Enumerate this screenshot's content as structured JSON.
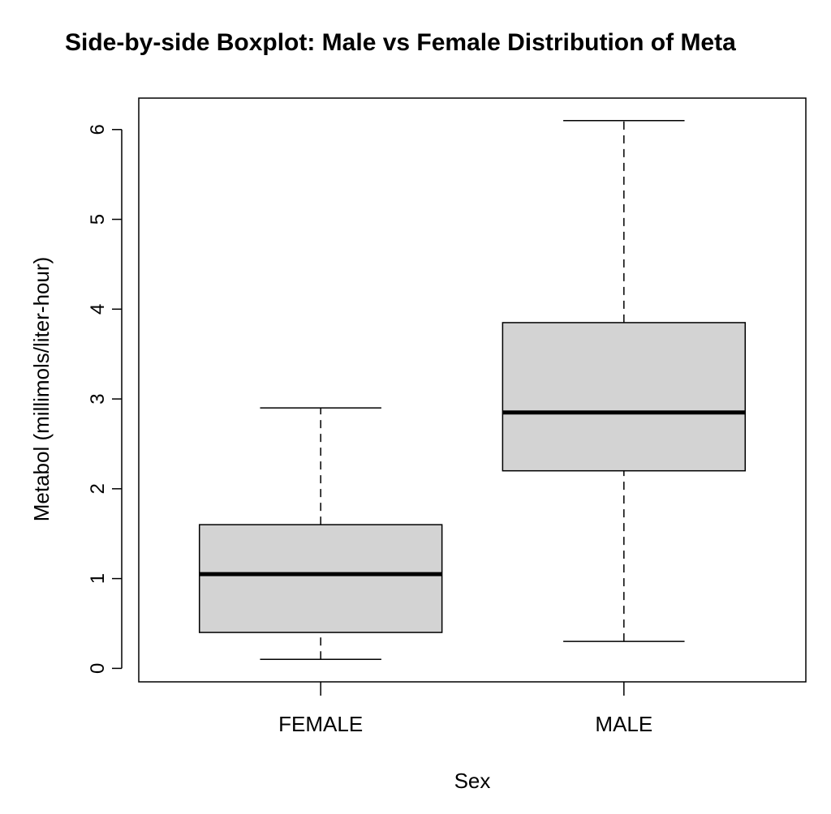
{
  "chart_data": {
    "type": "boxplot",
    "title": "Side-by-side Boxplot: Male vs Female Distribution of Meta",
    "xlabel": "Sex",
    "ylabel": "Metabol (millimols/liter-hour)",
    "categories": [
      "FEMALE",
      "MALE"
    ],
    "boxes": [
      {
        "category": "FEMALE",
        "min": 0.1,
        "q1": 0.4,
        "median": 1.05,
        "q3": 1.6,
        "max": 2.9
      },
      {
        "category": "MALE",
        "min": 0.3,
        "q1": 2.2,
        "median": 2.85,
        "q3": 3.85,
        "max": 6.1
      }
    ],
    "ylim": [
      -0.15,
      6.35
    ],
    "yticks": [
      0,
      1,
      2,
      3,
      4,
      5,
      6
    ],
    "ytick_labels": [
      "0",
      "1",
      "2",
      "3",
      "4",
      "5",
      "6"
    ],
    "grid": false,
    "box_fill": "#d3d3d3",
    "line_color": "#000000"
  }
}
